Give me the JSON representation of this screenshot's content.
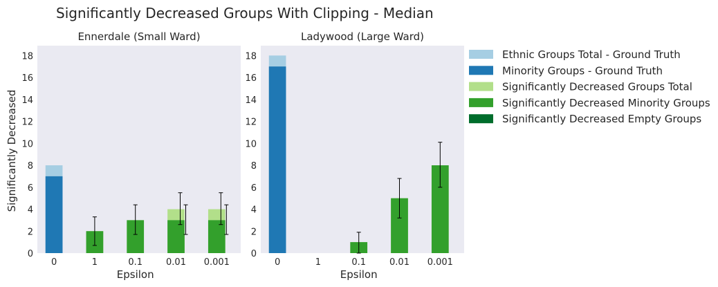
{
  "chart_data": {
    "type": "bar",
    "title": "Significantly Decreased Groups With Clipping - Median",
    "ylabel": "Significantly Decreased",
    "ylim": [
      0,
      18.9
    ],
    "yticks": [
      0,
      2,
      4,
      6,
      8,
      10,
      12,
      14,
      16,
      18
    ],
    "grid": false,
    "legend_position": "right",
    "legend": [
      {
        "name": "Ethnic Groups Total - Ground Truth",
        "color": "#a6cee3"
      },
      {
        "name": "Minority Groups - Ground Truth",
        "color": "#1f78b4"
      },
      {
        "name": "Significantly Decreased Groups Total",
        "color": "#b2df8a"
      },
      {
        "name": "Significantly Decreased Minority Groups",
        "color": "#33a02c"
      },
      {
        "name": "Significantly Decreased Empty Groups",
        "color": "#006d2c"
      }
    ],
    "panels": [
      {
        "title": "Ennerdale (Small Ward)",
        "xlabel": "Epsilon",
        "categories": [
          "0",
          "1",
          "0.1",
          "0.01",
          "0.001"
        ],
        "ground_truth": {
          "total": 8,
          "minority": 7
        },
        "decreased_total": [
          null,
          2,
          3,
          4,
          4
        ],
        "decreased_total_err": [
          null,
          null,
          null,
          [
            2.6,
            5.5
          ],
          [
            2.6,
            5.5
          ]
        ],
        "decreased_minority": [
          null,
          2,
          3,
          3,
          3
        ],
        "decreased_minority_err": [
          null,
          [
            0.7,
            3.3
          ],
          [
            1.7,
            4.4
          ],
          [
            1.7,
            4.4
          ],
          [
            1.7,
            4.4
          ]
        ],
        "decreased_empty": [
          null,
          0,
          0,
          0,
          0
        ]
      },
      {
        "title": "Ladywood (Large Ward)",
        "xlabel": "Epsilon",
        "categories": [
          "0",
          "1",
          "0.1",
          "0.01",
          "0.001"
        ],
        "ground_truth": {
          "total": 18,
          "minority": 17
        },
        "decreased_total": [
          null,
          0,
          1,
          5,
          8
        ],
        "decreased_total_err": [
          null,
          null,
          null,
          null,
          null
        ],
        "decreased_minority": [
          null,
          0,
          1,
          5,
          8
        ],
        "decreased_minority_err": [
          null,
          null,
          [
            0,
            1.9
          ],
          [
            3.2,
            6.8
          ],
          [
            6,
            10.1
          ]
        ],
        "decreased_empty": [
          null,
          0,
          0,
          0,
          0
        ]
      }
    ]
  }
}
